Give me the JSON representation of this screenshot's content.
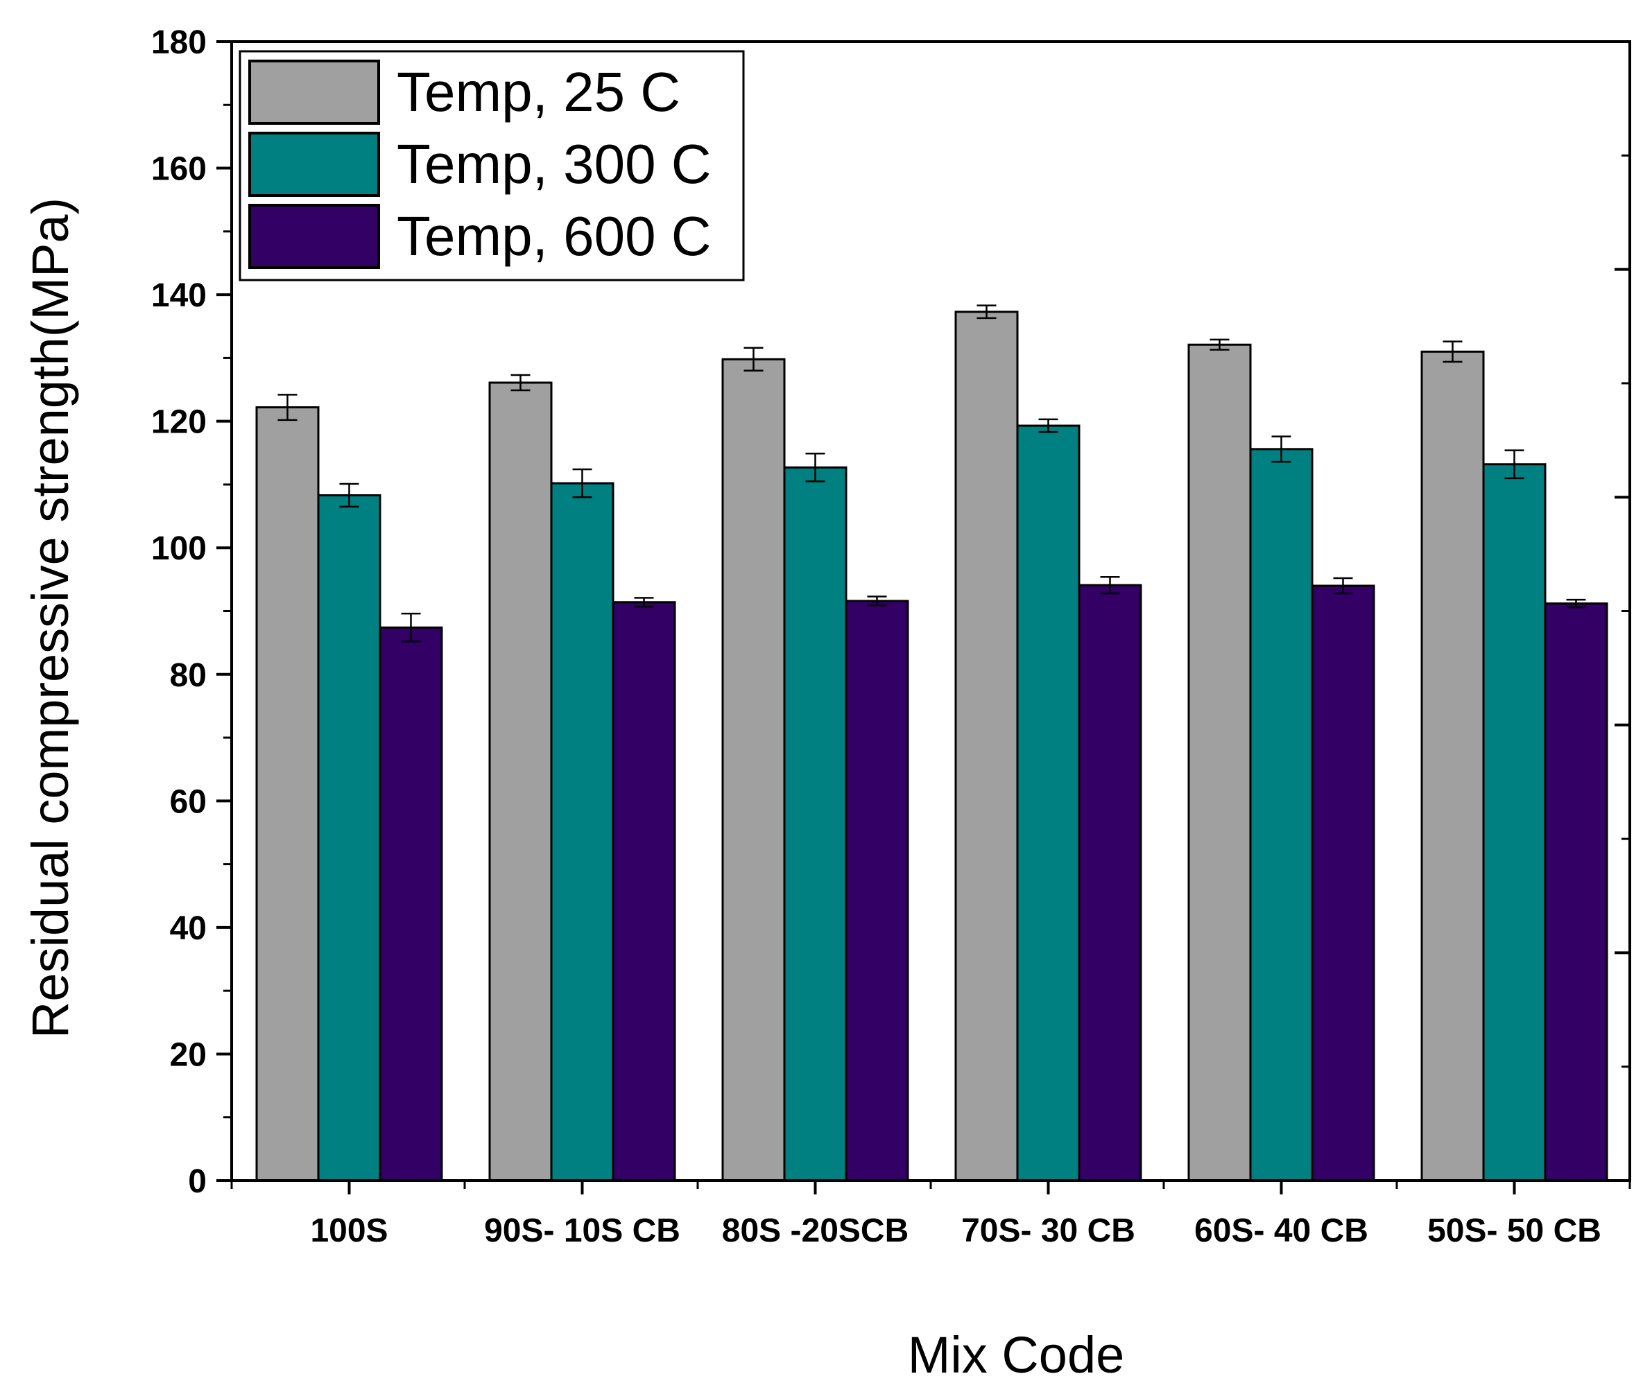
{
  "chart_data": {
    "type": "bar",
    "title": "",
    "xlabel": "Mix Code",
    "ylabel": "Residual compressive strength(MPa)",
    "ylim": [
      0,
      180
    ],
    "yticks": [
      0,
      20,
      40,
      60,
      80,
      100,
      120,
      140,
      160,
      180
    ],
    "grid": false,
    "legend_position": "top-left",
    "categories": [
      "100S",
      "90S- 10S CB",
      "80S -20SCB",
      "70S- 30 CB",
      "60S- 40 CB",
      "50S- 50 CB"
    ],
    "series": [
      {
        "name": "Temp, 25 C",
        "color": "#a0a0a0",
        "values": [
          122.2,
          126.1,
          129.8,
          137.3,
          132.1,
          131.0
        ],
        "errors": [
          2.0,
          1.2,
          1.8,
          1.0,
          0.8,
          1.6
        ]
      },
      {
        "name": "Temp, 300 C",
        "color": "#008080",
        "values": [
          108.3,
          110.2,
          112.7,
          119.3,
          115.6,
          113.2
        ],
        "errors": [
          1.8,
          2.2,
          2.2,
          1.0,
          2.0,
          2.2
        ]
      },
      {
        "name": "Temp, 600 C",
        "color": "#330066",
        "values": [
          87.4,
          91.4,
          91.6,
          94.1,
          94.0,
          91.2
        ],
        "errors": [
          2.2,
          0.7,
          0.7,
          1.3,
          1.2,
          0.6
        ]
      }
    ]
  }
}
